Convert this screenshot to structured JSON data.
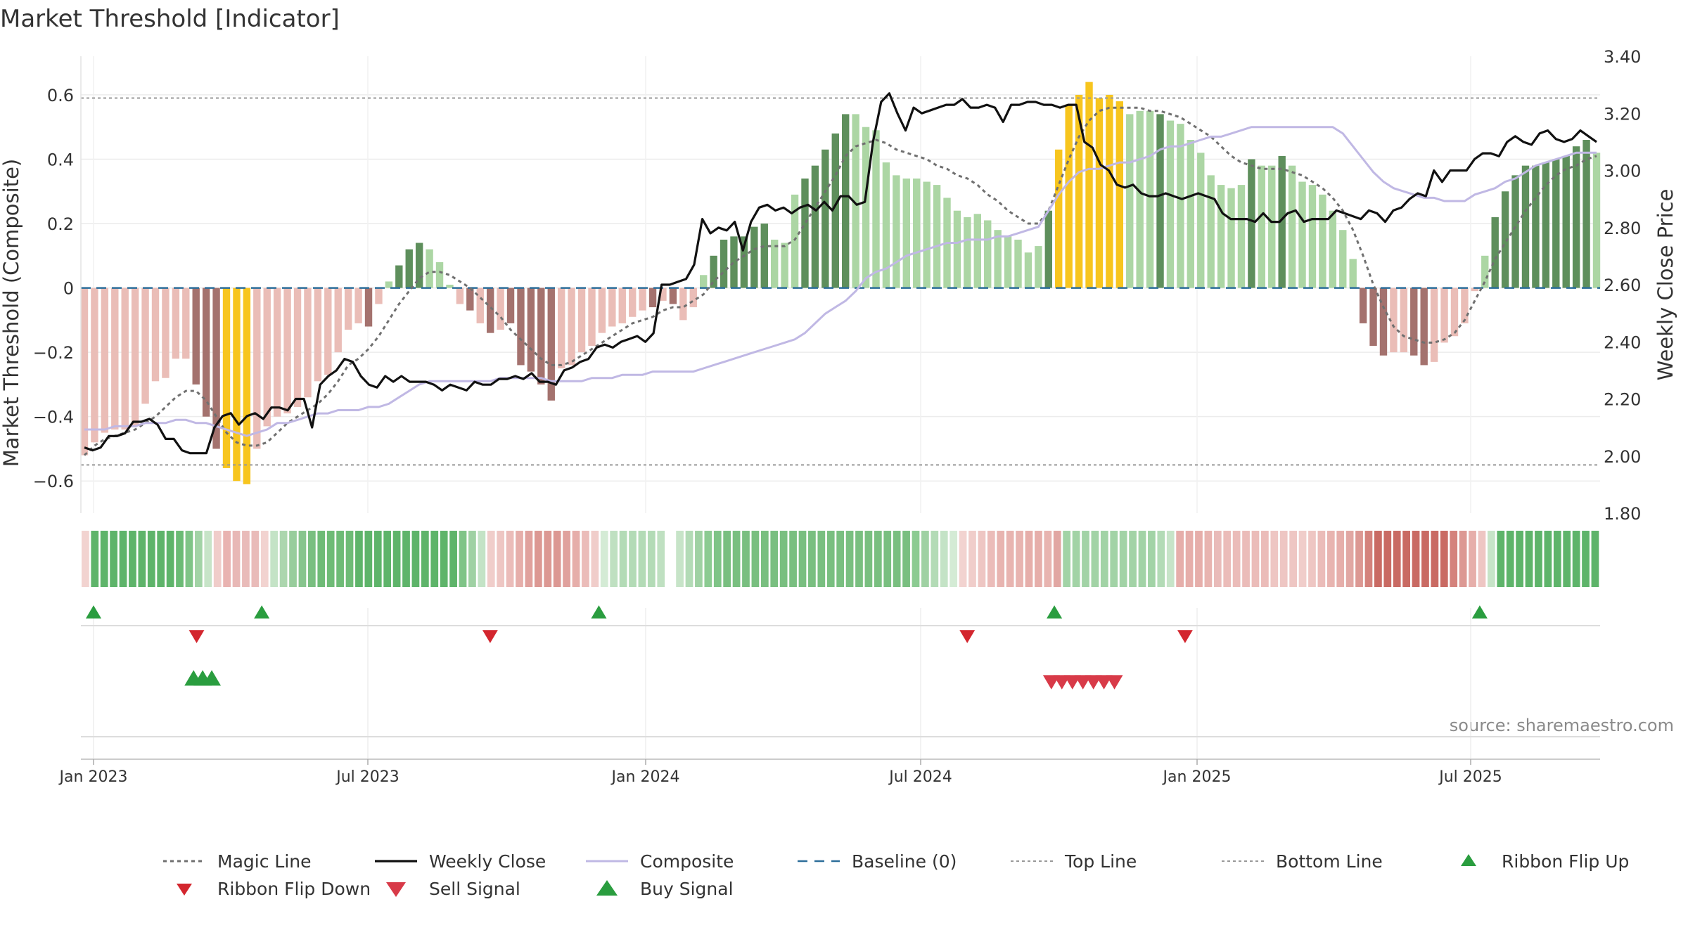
{
  "chart_data": {
    "type": "bar",
    "title": "Market Threshold [Indicator]",
    "ylabel": "Market Threshold (Composite)",
    "y2label": "Weekly Close Price",
    "ylim": [
      -0.7,
      0.72
    ],
    "y2lim": [
      1.8,
      3.4
    ],
    "y_ticks": [
      0.6,
      0.4,
      0.2,
      0,
      -0.2,
      -0.4,
      -0.6
    ],
    "y_tick_labels": [
      "0.6",
      "0.4",
      "0.2",
      "0",
      "−0.2",
      "−0.4",
      "−0.6"
    ],
    "y2_ticks": [
      3.4,
      3.2,
      3.0,
      2.8,
      2.6,
      2.4,
      2.2,
      2.0,
      1.8
    ],
    "y2_tick_labels": [
      "3.40",
      "3.20",
      "3.00",
      "2.80",
      "2.60",
      "2.40",
      "2.20",
      "2.00",
      "1.80"
    ],
    "x_ticks": [
      "2023-01-01",
      "2023-07-01",
      "2024-01-01",
      "2024-07-01",
      "2025-01-01",
      "2025-07-01"
    ],
    "x_tick_labels": [
      "Jan 2023",
      "Jul 2023",
      "Jan 2024",
      "Jul 2024",
      "Jan 2025",
      "Jul 2025"
    ],
    "top_line": 0.59,
    "bottom_line": -0.55,
    "baseline": 0,
    "bar_colors": {
      "light_red": "#eabdb7",
      "dark_red": "#a4726e",
      "light_green": "#acd6a4",
      "dark_green": "#5e8f5c",
      "gold": "#f7c51e"
    },
    "series_colors": {
      "magic_line": "#707070",
      "weekly_close": "#111111",
      "composite": "#c0b8e4",
      "baseline": "#2d6e9a",
      "top_bottom": "#999999",
      "signal_up": "#2a9d3f",
      "signal_down": "#d3262e",
      "sell_signal": "#d83a48"
    },
    "start_date": "2023-01-01",
    "composite_bars": [
      -0.52,
      -0.48,
      -0.45,
      -0.44,
      -0.44,
      -0.43,
      -0.36,
      -0.29,
      -0.28,
      -0.22,
      -0.22,
      -0.3,
      -0.4,
      -0.5,
      -0.56,
      -0.6,
      -0.61,
      -0.5,
      -0.43,
      -0.4,
      -0.39,
      -0.37,
      -0.34,
      -0.29,
      -0.27,
      -0.2,
      -0.13,
      -0.11,
      -0.12,
      -0.05,
      0.02,
      0.07,
      0.12,
      0.14,
      0.12,
      0.08,
      0.01,
      -0.05,
      -0.07,
      -0.11,
      -0.14,
      -0.13,
      -0.11,
      -0.24,
      -0.26,
      -0.3,
      -0.35,
      -0.25,
      -0.24,
      -0.2,
      -0.18,
      -0.14,
      -0.12,
      -0.11,
      -0.09,
      -0.07,
      -0.06,
      -0.04,
      -0.05,
      -0.1,
      -0.06,
      0.04,
      0.1,
      0.15,
      0.16,
      0.16,
      0.19,
      0.2,
      0.15,
      0.14,
      0.29,
      0.34,
      0.38,
      0.43,
      0.48,
      0.54,
      0.54,
      0.5,
      0.49,
      0.39,
      0.35,
      0.34,
      0.34,
      0.33,
      0.32,
      0.28,
      0.24,
      0.22,
      0.23,
      0.21,
      0.18,
      0.16,
      0.15,
      0.11,
      0.13,
      0.24,
      0.43,
      0.57,
      0.6,
      0.64,
      0.59,
      0.6,
      0.58,
      0.54,
      0.55,
      0.55,
      0.54,
      0.52,
      0.51,
      0.46,
      0.42,
      0.35,
      0.32,
      0.31,
      0.32,
      0.4,
      0.38,
      0.38,
      0.41,
      0.38,
      0.33,
      0.32,
      0.29,
      0.24,
      0.18,
      0.09,
      -0.11,
      -0.18,
      -0.21,
      -0.2,
      -0.2,
      -0.21,
      -0.24,
      -0.23,
      -0.17,
      -0.15,
      -0.11,
      -0.01,
      0.1,
      0.22,
      0.3,
      0.35,
      0.38,
      0.38,
      0.39,
      0.4,
      0.41,
      0.44,
      0.46,
      0.42
    ],
    "bar_shades": [
      "lr",
      "lr",
      "lr",
      "lr",
      "lr",
      "lr",
      "lr",
      "lr",
      "lr",
      "lr",
      "lr",
      "dr",
      "dr",
      "dr",
      "g",
      "g",
      "g",
      "lr",
      "lr",
      "lr",
      "lr",
      "lr",
      "lr",
      "lr",
      "lr",
      "lr",
      "lr",
      "lr",
      "dr",
      "lr",
      "lg",
      "dg",
      "dg",
      "dg",
      "lg",
      "lg",
      "lg",
      "lr",
      "dr",
      "lr",
      "dr",
      "lr",
      "dr",
      "dr",
      "dr",
      "dr",
      "dr",
      "lr",
      "lr",
      "lr",
      "lr",
      "lr",
      "lr",
      "lr",
      "lr",
      "lr",
      "dr",
      "lr",
      "dr",
      "lr",
      "lr",
      "lg",
      "dg",
      "dg",
      "dg",
      "dg",
      "dg",
      "dg",
      "lg",
      "lg",
      "lg",
      "dg",
      "dg",
      "dg",
      "dg",
      "dg",
      "lg",
      "lg",
      "lg",
      "lg",
      "lg",
      "lg",
      "lg",
      "lg",
      "lg",
      "lg",
      "lg",
      "lg",
      "lg",
      "lg",
      "lg",
      "lg",
      "lg",
      "lg",
      "lg",
      "dg",
      "g",
      "g",
      "g",
      "g",
      "g",
      "g",
      "g",
      "lg",
      "lg",
      "lg",
      "dg",
      "lg",
      "lg",
      "lg",
      "lg",
      "lg",
      "lg",
      "lg",
      "lg",
      "dg",
      "lg",
      "lg",
      "dg",
      "lg",
      "lg",
      "lg",
      "lg",
      "lg",
      "lg",
      "lg",
      "dr",
      "dr",
      "dr",
      "lr",
      "lr",
      "dr",
      "dr",
      "lr",
      "lr",
      "lr",
      "lr",
      "lr",
      "lg",
      "dg",
      "dg",
      "dg",
      "dg",
      "dg",
      "dg",
      "dg",
      "dg",
      "dg",
      "dg",
      "lg"
    ],
    "magic_line": [
      -0.52,
      -0.49,
      -0.47,
      -0.46,
      -0.45,
      -0.44,
      -0.42,
      -0.4,
      -0.37,
      -0.34,
      -0.32,
      -0.32,
      -0.35,
      -0.4,
      -0.45,
      -0.48,
      -0.49,
      -0.49,
      -0.48,
      -0.45,
      -0.42,
      -0.4,
      -0.38,
      -0.36,
      -0.33,
      -0.29,
      -0.24,
      -0.22,
      -0.19,
      -0.15,
      -0.1,
      -0.05,
      -0.01,
      0.03,
      0.05,
      0.05,
      0.04,
      0.02,
      0.0,
      -0.03,
      -0.06,
      -0.09,
      -0.13,
      -0.16,
      -0.19,
      -0.22,
      -0.24,
      -0.24,
      -0.23,
      -0.21,
      -0.19,
      -0.17,
      -0.15,
      -0.13,
      -0.11,
      -0.1,
      -0.09,
      -0.07,
      -0.06,
      -0.06,
      -0.04,
      -0.02,
      0.02,
      0.05,
      0.08,
      0.1,
      0.12,
      0.13,
      0.13,
      0.13,
      0.15,
      0.2,
      0.25,
      0.3,
      0.35,
      0.41,
      0.44,
      0.45,
      0.46,
      0.45,
      0.43,
      0.42,
      0.41,
      0.4,
      0.38,
      0.37,
      0.35,
      0.34,
      0.32,
      0.29,
      0.27,
      0.24,
      0.22,
      0.2,
      0.2,
      0.24,
      0.32,
      0.4,
      0.47,
      0.52,
      0.55,
      0.56,
      0.56,
      0.56,
      0.56,
      0.55,
      0.55,
      0.54,
      0.53,
      0.51,
      0.49,
      0.47,
      0.44,
      0.41,
      0.39,
      0.38,
      0.37,
      0.37,
      0.37,
      0.36,
      0.35,
      0.33,
      0.31,
      0.28,
      0.24,
      0.18,
      0.1,
      0.01,
      -0.06,
      -0.12,
      -0.15,
      -0.16,
      -0.17,
      -0.17,
      -0.16,
      -0.14,
      -0.1,
      -0.04,
      0.02,
      0.09,
      0.14,
      0.19,
      0.24,
      0.28,
      0.32,
      0.35,
      0.37,
      0.38,
      0.4,
      0.41
    ],
    "composite_line": [
      -0.44,
      -0.44,
      -0.44,
      -0.43,
      -0.43,
      -0.43,
      -0.42,
      -0.42,
      -0.42,
      -0.41,
      -0.41,
      -0.42,
      -0.42,
      -0.43,
      -0.44,
      -0.45,
      -0.46,
      -0.45,
      -0.44,
      -0.42,
      -0.42,
      -0.41,
      -0.4,
      -0.39,
      -0.39,
      -0.38,
      -0.38,
      -0.38,
      -0.37,
      -0.37,
      -0.36,
      -0.34,
      -0.32,
      -0.3,
      -0.29,
      -0.29,
      -0.29,
      -0.29,
      -0.29,
      -0.29,
      -0.29,
      -0.28,
      -0.28,
      -0.28,
      -0.28,
      -0.28,
      -0.29,
      -0.29,
      -0.29,
      -0.29,
      -0.28,
      -0.28,
      -0.28,
      -0.27,
      -0.27,
      -0.27,
      -0.26,
      -0.26,
      -0.26,
      -0.26,
      -0.26,
      -0.25,
      -0.24,
      -0.23,
      -0.22,
      -0.21,
      -0.2,
      -0.19,
      -0.18,
      -0.17,
      -0.16,
      -0.14,
      -0.11,
      -0.08,
      -0.06,
      -0.04,
      -0.01,
      0.03,
      0.05,
      0.06,
      0.08,
      0.1,
      0.11,
      0.12,
      0.13,
      0.14,
      0.14,
      0.15,
      0.15,
      0.15,
      0.16,
      0.16,
      0.17,
      0.18,
      0.19,
      0.24,
      0.29,
      0.33,
      0.36,
      0.37,
      0.37,
      0.38,
      0.39,
      0.39,
      0.4,
      0.41,
      0.43,
      0.44,
      0.44,
      0.45,
      0.46,
      0.47,
      0.47,
      0.48,
      0.49,
      0.5,
      0.5,
      0.5,
      0.5,
      0.5,
      0.5,
      0.5,
      0.5,
      0.5,
      0.48,
      0.44,
      0.4,
      0.36,
      0.33,
      0.31,
      0.3,
      0.29,
      0.28,
      0.28,
      0.27,
      0.27,
      0.27,
      0.29,
      0.3,
      0.31,
      0.33,
      0.34,
      0.36,
      0.38,
      0.39,
      0.4,
      0.41,
      0.42,
      0.42,
      0.42
    ],
    "weekly_close": [
      2.03,
      2.02,
      2.03,
      2.07,
      2.07,
      2.08,
      2.12,
      2.12,
      2.13,
      2.11,
      2.06,
      2.06,
      2.02,
      2.01,
      2.01,
      2.01,
      2.1,
      2.14,
      2.15,
      2.11,
      2.14,
      2.15,
      2.13,
      2.17,
      2.17,
      2.16,
      2.2,
      2.2,
      2.1,
      2.25,
      2.28,
      2.3,
      2.34,
      2.33,
      2.28,
      2.25,
      2.24,
      2.28,
      2.26,
      2.28,
      2.26,
      2.26,
      2.26,
      2.25,
      2.23,
      2.25,
      2.24,
      2.23,
      2.26,
      2.25,
      2.25,
      2.27,
      2.27,
      2.28,
      2.27,
      2.29,
      2.26,
      2.26,
      2.25,
      2.3,
      2.31,
      2.33,
      2.34,
      2.38,
      2.39,
      2.38,
      2.4,
      2.41,
      2.42,
      2.4,
      2.43,
      2.6,
      2.6,
      2.61,
      2.62,
      2.67,
      2.83,
      2.78,
      2.8,
      2.79,
      2.82,
      2.72,
      2.82,
      2.87,
      2.88,
      2.86,
      2.87,
      2.85,
      2.87,
      2.88,
      2.86,
      2.89,
      2.86,
      2.91,
      2.91,
      2.88,
      2.89,
      3.1,
      3.24,
      3.27,
      3.2,
      3.14,
      3.22,
      3.2,
      3.21,
      3.22,
      3.23,
      3.23,
      3.25,
      3.22,
      3.22,
      3.23,
      3.22,
      3.17,
      3.23,
      3.23,
      3.24,
      3.24,
      3.23,
      3.23,
      3.22,
      3.23,
      3.23,
      3.1,
      3.08,
      3.02,
      3.0,
      2.95,
      2.94,
      2.95,
      2.92,
      2.91,
      2.91,
      2.92,
      2.91,
      2.9,
      2.91,
      2.92,
      2.91,
      2.9,
      2.85,
      2.83,
      2.83,
      2.83,
      2.82,
      2.85,
      2.82,
      2.82,
      2.85,
      2.86,
      2.82,
      2.83,
      2.83,
      2.83,
      2.86,
      2.85,
      2.84,
      2.83,
      2.86,
      2.85,
      2.82,
      2.86,
      2.87,
      2.9,
      2.92,
      2.91,
      3.0,
      2.96,
      3.0,
      3.0,
      3.0,
      3.04,
      3.06,
      3.06,
      3.05,
      3.1,
      3.12,
      3.1,
      3.09,
      3.13,
      3.14,
      3.11,
      3.1,
      3.11,
      3.14,
      3.12,
      3.1
    ],
    "ribbon_colors": [
      "#f2d3d0",
      "#5eb46a",
      "#5eb46a",
      "#5eb46a",
      "#5eb46a",
      "#5eb46a",
      "#5eb46a",
      "#5eb46a",
      "#5eb46a",
      "#5eb46a",
      "#6bbb75",
      "#7fc487",
      "#a2d3a6",
      "#c7e4c8",
      "#f0cdca",
      "#e9b3b1",
      "#e8b8b6",
      "#e9bbb9",
      "#e9bbb9",
      "#f2d3d0",
      "#c4e3c6",
      "#acd6ae",
      "#98cd9c",
      "#87c58d",
      "#79bf80",
      "#6ebb76",
      "#6ebb76",
      "#6ebb76",
      "#6ebb76",
      "#5eb46a",
      "#5eb46a",
      "#5eb46a",
      "#5eb46a",
      "#5eb46a",
      "#5eb46a",
      "#5eb46a",
      "#5eb46a",
      "#5eb46a",
      "#5eb46a",
      "#5eb46a",
      "#7fc487",
      "#9fd1a3",
      "#c4e3c6",
      "#f0cdca",
      "#eec6c3",
      "#ebbcb9",
      "#e6aeaa",
      "#e0a19d",
      "#dc9893",
      "#dc9893",
      "#dc9893",
      "#e0a19d",
      "#e6aeaa",
      "#ebbcb9",
      "#f0cdca",
      "#d4ebd5",
      "#bfe0c1",
      "#b3dbb6",
      "#b3dbb6",
      "#b3dbb6",
      "#b3dbb6",
      "#bfe0c1",
      "#ffffff",
      "#c7e4c8",
      "#b3dbb6",
      "#9fd1a3",
      "#8ccb92",
      "#7fc487",
      "#79bf80",
      "#79bf80",
      "#79bf80",
      "#79bf80",
      "#79bf80",
      "#79bf80",
      "#79bf80",
      "#79bf80",
      "#79bf80",
      "#79bf80",
      "#79bf80",
      "#79bf80",
      "#79bf80",
      "#79bf80",
      "#79bf80",
      "#79bf80",
      "#79bf80",
      "#79bf80",
      "#79bf80",
      "#79bf80",
      "#8ccb92",
      "#9fd1a3",
      "#b3dbb6",
      "#c4e3c6",
      "#d4ebd5",
      "#f2d3d0",
      "#f0cdca",
      "#eec6c3",
      "#ebbcb9",
      "#e8b4b0",
      "#e8b4b0",
      "#e8b4b0",
      "#e6aeaa",
      "#e6aeaa",
      "#e8b4b0",
      "#e1a7a3",
      "#a2d3a6",
      "#a2d3a6",
      "#a2d3a6",
      "#a2d3a6",
      "#a2d3a6",
      "#a2d3a6",
      "#a2d3a6",
      "#a2d3a6",
      "#a2d3a6",
      "#a2d3a6",
      "#b3dbb6",
      "#c7e4c8",
      "#e6aeaa",
      "#e6aeaa",
      "#e6aeaa",
      "#e8b4b0",
      "#e9bbb9",
      "#ebbcb9",
      "#ebbcb9",
      "#ebbcb9",
      "#ebbcb9",
      "#ebbcb9",
      "#eec6c3",
      "#eec6c3",
      "#eec6c3",
      "#f0cdca",
      "#eec6c3",
      "#ebbcb9",
      "#e8b4b0",
      "#e6aeaa",
      "#e1a7a3",
      "#dc9893",
      "#d4827c",
      "#c96a63",
      "#c96a63",
      "#c96a63",
      "#c96a63",
      "#c96a63",
      "#c96a63",
      "#c96a63",
      "#c96a63",
      "#d4827c",
      "#dc9893",
      "#e6aeaa",
      "#eec6c3",
      "#c7e4c8",
      "#5eb46a",
      "#5eb46a",
      "#5eb46a",
      "#5eb46a",
      "#5eb46a",
      "#5eb46a",
      "#5eb46a",
      "#5eb46a",
      "#5eb46a",
      "#5eb46a",
      "#5eb46a"
    ],
    "ribbon_flip_up_dates": [
      "2023-01-01",
      "2023-04-22",
      "2023-12-01",
      "2024-09-28",
      "2025-07-07"
    ],
    "ribbon_flip_down_dates": [
      "2023-03-10",
      "2023-09-20",
      "2024-08-01",
      "2024-12-24"
    ],
    "buy_signal_dates": [
      "2023-03-08",
      "2023-03-14",
      "2023-03-20"
    ],
    "sell_signal_dates": [
      "2024-09-26",
      "2024-10-03",
      "2024-10-10",
      "2024-10-17",
      "2024-10-24",
      "2024-10-31",
      "2024-11-07"
    ],
    "legend": [
      {
        "key": "magic",
        "label": "Magic Line"
      },
      {
        "key": "close",
        "label": "Weekly Close"
      },
      {
        "key": "composite",
        "label": "Composite"
      },
      {
        "key": "baseline",
        "label": "Baseline (0)"
      },
      {
        "key": "top",
        "label": "Top Line"
      },
      {
        "key": "bottom",
        "label": "Bottom Line"
      },
      {
        "key": "flipup",
        "label": "Ribbon Flip Up"
      },
      {
        "key": "flipdown",
        "label": "Ribbon Flip Down"
      },
      {
        "key": "sell",
        "label": "Sell Signal"
      },
      {
        "key": "buy",
        "label": "Buy Signal"
      }
    ],
    "legend_placement": "bottom",
    "source": "source: sharemaestro.com"
  }
}
